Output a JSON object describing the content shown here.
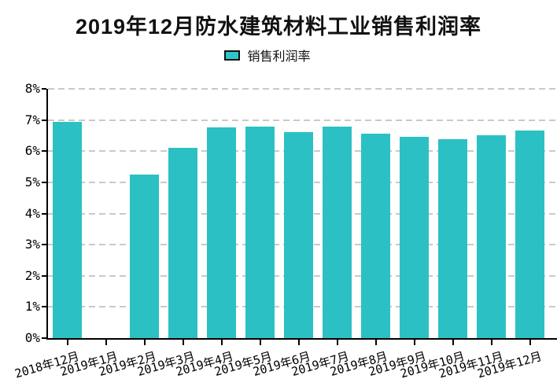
{
  "title": "2019年12月防水建筑材料工业销售利润率",
  "legend": {
    "label": "销售利润率",
    "swatch_color": "#2ec7c9"
  },
  "colors": {
    "bar": "#2bc1c4",
    "axis": "#000000",
    "grid": "#c9c9c9",
    "title_text": "#111111",
    "background": "#ffffff"
  },
  "chart_data": {
    "type": "bar",
    "title": "2019年12月防水建筑材料工业销售利润率",
    "legend_entries": [
      "销售利润率"
    ],
    "legend_position": "top",
    "categories": [
      "2018年12月",
      "2019年1月",
      "2019年2月",
      "2019年3月",
      "2019年4月",
      "2019年5月",
      "2019年6月",
      "2019年7月",
      "2019年8月",
      "2019年9月",
      "2019年10月",
      "2019年11月",
      "2019年12月"
    ],
    "series": [
      {
        "name": "销售利润率",
        "values": [
          6.95,
          null,
          5.25,
          6.1,
          6.77,
          6.8,
          6.6,
          6.78,
          6.56,
          6.46,
          6.38,
          6.52,
          6.66
        ]
      }
    ],
    "xlabel": "",
    "ylabel": "",
    "ylim": [
      0,
      8
    ],
    "ytick_step": 1,
    "ytick_suffix": "%",
    "grid": "horizontal-dashed"
  }
}
